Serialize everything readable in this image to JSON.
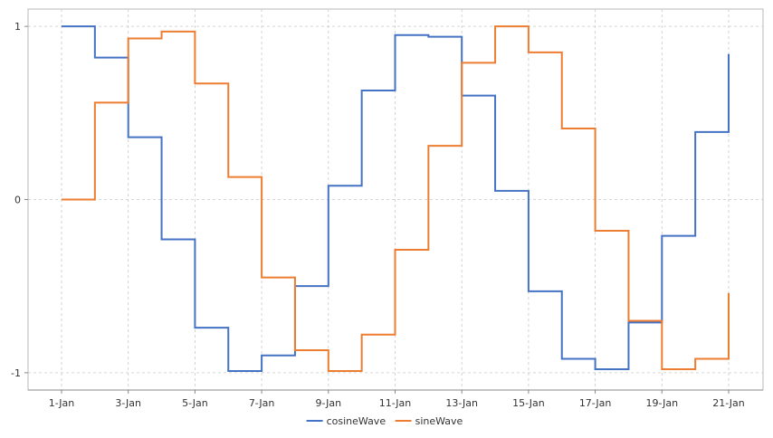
{
  "chart_data": {
    "type": "line",
    "step": true,
    "title": "",
    "xlabel": "",
    "ylabel": "",
    "x": [
      "1-Jan",
      "2-Jan",
      "3-Jan",
      "4-Jan",
      "5-Jan",
      "6-Jan",
      "7-Jan",
      "8-Jan",
      "9-Jan",
      "10-Jan",
      "11-Jan",
      "12-Jan",
      "13-Jan",
      "14-Jan",
      "15-Jan",
      "16-Jan",
      "17-Jan",
      "18-Jan",
      "19-Jan",
      "20-Jan",
      "21-Jan"
    ],
    "x_ticks": [
      "1-Jan",
      "3-Jan",
      "5-Jan",
      "7-Jan",
      "9-Jan",
      "11-Jan",
      "13-Jan",
      "15-Jan",
      "17-Jan",
      "19-Jan",
      "21-Jan"
    ],
    "y_ticks": [
      1,
      0,
      -1
    ],
    "y_tick_labels": [
      "1",
      "0",
      "-1"
    ],
    "ylim": [
      -1.1,
      1.1
    ],
    "grid": true,
    "legend_position": "bottom-center",
    "series": [
      {
        "name": "cosineWave",
        "color": "#4472c4",
        "values": [
          1.0,
          0.82,
          0.36,
          -0.23,
          -0.74,
          -0.99,
          -0.9,
          -0.5,
          0.08,
          0.63,
          0.95,
          0.94,
          0.6,
          0.05,
          -0.53,
          -0.92,
          -0.98,
          -0.71,
          -0.21,
          0.39,
          0.84
        ]
      },
      {
        "name": "sineWave",
        "color": "#ed7d31",
        "values": [
          0.0,
          0.56,
          0.93,
          0.97,
          0.67,
          0.13,
          -0.45,
          -0.87,
          -0.99,
          -0.78,
          -0.29,
          0.31,
          0.79,
          1.0,
          0.85,
          0.41,
          -0.18,
          -0.7,
          -0.98,
          -0.92,
          -0.54
        ]
      }
    ]
  }
}
